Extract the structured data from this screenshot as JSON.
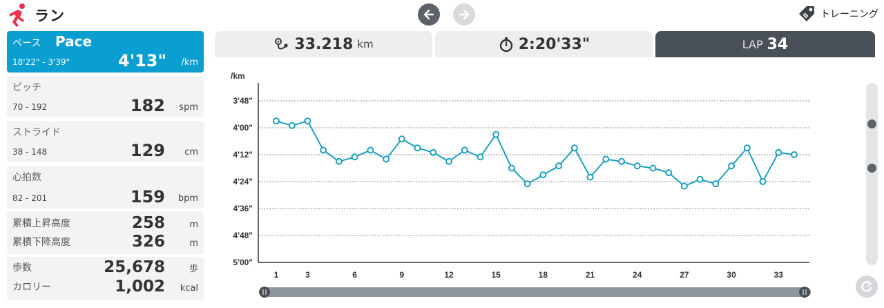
{
  "header": {
    "title": "ラン",
    "training_label": "トレーニング"
  },
  "metrics": {
    "pace": {
      "label_jp": "ペース",
      "label_en": "Pace",
      "range": "18'22\" - 3'39\"",
      "value": "4'13\"",
      "unit": "/km"
    },
    "pitch": {
      "label": "ピッチ",
      "range": "70 - 192",
      "value": "182",
      "unit": "spm"
    },
    "stride": {
      "label": "ストライド",
      "range": "38 - 148",
      "value": "129",
      "unit": "cm"
    },
    "heart_rate": {
      "label": "心拍数",
      "range": "82 - 201",
      "value": "159",
      "unit": "bpm"
    },
    "elevation": {
      "ascent_label": "累積上昇高度",
      "ascent_value": "258",
      "ascent_unit": "m",
      "descent_label": "累積下降高度",
      "descent_value": "326",
      "descent_unit": "m"
    },
    "steps": {
      "steps_label": "歩数",
      "steps_value": "25,678",
      "steps_unit": "歩",
      "calorie_label": "カロリー",
      "calorie_value": "1,002",
      "calorie_unit": "kcal"
    }
  },
  "tabs": {
    "distance_value": "33.218",
    "distance_unit": "km",
    "time_value": "2:20'33\"",
    "lap_label": "LAP",
    "lap_value": "34"
  },
  "colors": {
    "accent": "#0b9ed1",
    "line": "#1aa0bf",
    "dark": "#4a5058"
  },
  "chart_data": {
    "type": "line",
    "ylabel": "/km",
    "y_inverted": true,
    "ylim": [
      228,
      300
    ],
    "y_ticks": [
      228,
      240,
      252,
      264,
      276,
      288,
      300
    ],
    "y_tick_labels": [
      "3'48\"",
      "4'00\"",
      "4'12\"",
      "4'24\"",
      "4'36\"",
      "4'48\"",
      "5'00\""
    ],
    "x_ticks": [
      1,
      3,
      6,
      9,
      12,
      15,
      18,
      21,
      24,
      27,
      30,
      33
    ],
    "xlim": [
      1,
      34
    ],
    "grid": true,
    "x": [
      1,
      2,
      3,
      4,
      5,
      6,
      7,
      8,
      9,
      10,
      11,
      12,
      13,
      14,
      15,
      16,
      17,
      18,
      19,
      20,
      21,
      22,
      23,
      24,
      25,
      26,
      27,
      28,
      29,
      30,
      31,
      32,
      33,
      34
    ],
    "values": [
      237,
      239,
      237,
      250,
      255,
      253,
      250,
      254,
      245,
      249,
      251,
      255,
      250,
      253,
      243,
      258,
      265,
      261,
      257,
      249,
      262,
      254,
      255,
      257,
      258,
      260,
      266,
      263,
      265,
      257,
      249,
      264,
      251,
      252
    ]
  }
}
